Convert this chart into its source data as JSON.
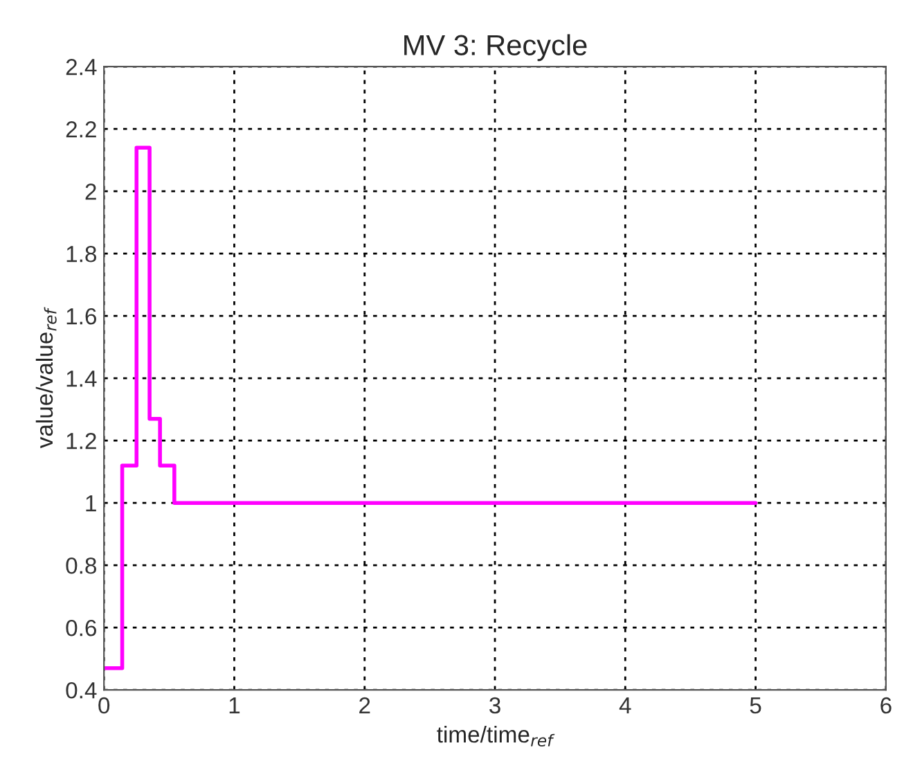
{
  "chart_data": {
    "type": "step",
    "title": "MV 3: Recycle",
    "xlabel": "time/time$_{ref}$",
    "ylabel": "value/value$_{ref}$",
    "x": [
      0,
      0.14,
      0.25,
      0.35,
      0.43,
      0.54,
      5
    ],
    "series": [
      {
        "color": "#ff00ff",
        "values": [
          0.47,
          1.12,
          2.14,
          1.27,
          1.12,
          1.0,
          1.0
        ]
      }
    ],
    "xlim": [
      0,
      6
    ],
    "xticks": [
      0,
      1,
      2,
      3,
      4,
      5,
      6
    ],
    "ylim": [
      0.4,
      2.4
    ],
    "yticks": [
      {
        "value": 0.4,
        "label": "0.4"
      },
      {
        "value": 0.6,
        "label": "0.6"
      },
      {
        "value": 0.8,
        "label": "0.8"
      },
      1,
      {
        "value": 1.2,
        "label": "1.2"
      },
      {
        "value": 1.4,
        "label": "1.4"
      },
      {
        "value": 1.6,
        "label": "1.6"
      },
      {
        "value": 1.8,
        "label": "1.8"
      },
      2,
      {
        "value": 2.2,
        "label": "2.2"
      },
      {
        "value": 2.4,
        "label": "2.4"
      }
    ],
    "grid": true,
    "line_style": "solid",
    "marker": "none"
  }
}
